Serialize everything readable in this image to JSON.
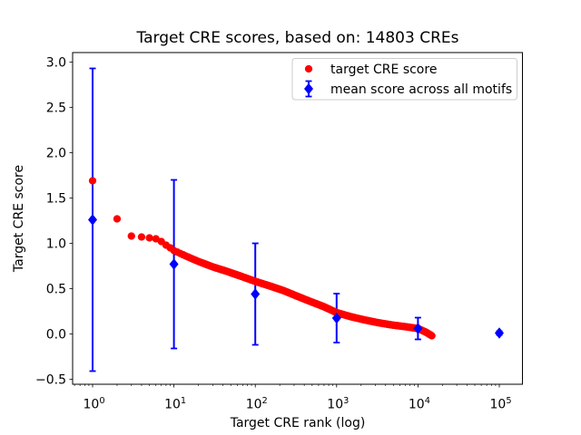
{
  "chart_data": {
    "type": "scatter",
    "title": "Target CRE scores, based on: 14803 CREs",
    "xlabel": "Target CRE rank (log)",
    "ylabel": "Target CRE score",
    "x_scale": "log",
    "xlim": [
      0.57,
      190000
    ],
    "ylim": [
      -0.56,
      3.1
    ],
    "x_tick_exponents": [
      0,
      1,
      2,
      3,
      4,
      5
    ],
    "y_ticks": [
      3.0,
      2.5,
      2.0,
      1.5,
      1.0,
      0.5,
      0.0,
      -0.5
    ],
    "grid": false,
    "n_cres": 14803,
    "colors": {
      "target": "#ff0000",
      "mean": "#0000ff"
    },
    "legend": {
      "position": "upper right",
      "items": [
        {
          "label": "target CRE score",
          "marker": "circle",
          "color": "#ff0000"
        },
        {
          "label": "mean score across all motifs",
          "marker": "diamond-errorbar",
          "color": "#0000ff"
        }
      ]
    },
    "series": [
      {
        "name": "target CRE score",
        "type": "scatter-points",
        "marker": "circle",
        "color": "#ff0000",
        "n_points": 14803,
        "x_range": [
          1,
          14803
        ],
        "anchors_rank_score": [
          [
            1,
            1.69
          ],
          [
            2,
            1.27
          ],
          [
            3,
            1.08
          ],
          [
            4,
            1.07
          ],
          [
            5,
            1.06
          ],
          [
            6,
            1.05
          ],
          [
            7,
            1.02
          ],
          [
            8,
            0.98
          ],
          [
            9,
            0.95
          ],
          [
            10,
            0.92
          ],
          [
            14,
            0.86
          ],
          [
            20,
            0.8
          ],
          [
            30,
            0.74
          ],
          [
            45,
            0.69
          ],
          [
            70,
            0.63
          ],
          [
            100,
            0.58
          ],
          [
            150,
            0.53
          ],
          [
            220,
            0.48
          ],
          [
            320,
            0.42
          ],
          [
            470,
            0.36
          ],
          [
            700,
            0.3
          ],
          [
            1000,
            0.235
          ],
          [
            1500,
            0.19
          ],
          [
            2200,
            0.155
          ],
          [
            3200,
            0.125
          ],
          [
            4700,
            0.1
          ],
          [
            7000,
            0.08
          ],
          [
            10000,
            0.06
          ],
          [
            12500,
            0.02
          ],
          [
            14803,
            -0.02
          ]
        ]
      },
      {
        "name": "mean score across all motifs",
        "type": "errorbar",
        "marker": "diamond",
        "color": "#0000ff",
        "points": [
          {
            "x": 1,
            "y": 1.26,
            "yerr": 1.67
          },
          {
            "x": 10,
            "y": 0.77,
            "yerr": 0.93
          },
          {
            "x": 100,
            "y": 0.44,
            "yerr": 0.56
          },
          {
            "x": 1000,
            "y": 0.175,
            "yerr": 0.27
          },
          {
            "x": 10000,
            "y": 0.06,
            "yerr": 0.12
          },
          {
            "x": 100000,
            "y": 0.01,
            "yerr": 0.02
          }
        ]
      }
    ]
  }
}
